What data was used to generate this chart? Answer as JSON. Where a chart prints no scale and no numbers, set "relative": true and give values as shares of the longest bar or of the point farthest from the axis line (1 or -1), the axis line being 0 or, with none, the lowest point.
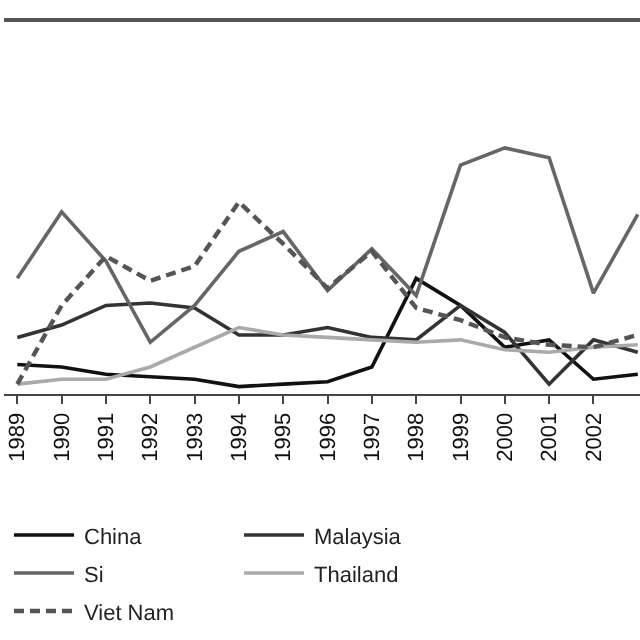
{
  "chart_data": {
    "type": "line",
    "relative": true,
    "x": [
      1989,
      1990,
      1991,
      1992,
      1993,
      1994,
      1995,
      1996,
      1997,
      1998,
      1999,
      2000,
      2001,
      2002,
      2003
    ],
    "xlim": [
      1988.7,
      2003.05
    ],
    "xticks": [
      1989,
      1990,
      1991,
      1992,
      1993,
      1994,
      1995,
      1996,
      1997,
      1998,
      1999,
      2000,
      2001,
      2002
    ],
    "grid": false,
    "legend": "bottom",
    "marker": "none",
    "series": [
      {
        "name": "China",
        "color": "#111111",
        "line_style": "solid",
        "values": [
          0.12,
          0.11,
          0.08,
          0.07,
          0.06,
          0.03,
          0.04,
          0.05,
          0.11,
          0.47,
          0.36,
          0.19,
          0.22,
          0.06,
          0.08
        ]
      },
      {
        "name": "Malaysia",
        "color": "#333333",
        "line_style": "solid",
        "values": [
          0.23,
          0.28,
          0.36,
          0.37,
          0.35,
          0.24,
          0.24,
          0.27,
          0.23,
          0.22,
          0.36,
          0.25,
          0.04,
          0.22,
          0.17
        ]
      },
      {
        "name": "Si",
        "color": "#666666",
        "line_style": "solid",
        "values": [
          0.47,
          0.74,
          0.54,
          0.21,
          0.36,
          0.58,
          0.66,
          0.42,
          0.59,
          0.4,
          0.93,
          1,
          0.96,
          0.41,
          0.73
        ]
      },
      {
        "name": "Thailand",
        "color": "#aaaaaa",
        "line_style": "solid",
        "values": [
          0.04,
          0.06,
          0.06,
          0.11,
          0.19,
          0.27,
          0.24,
          0.23,
          0.22,
          0.21,
          0.22,
          0.18,
          0.17,
          0.19,
          0.2
        ]
      },
      {
        "name": "Viet Nam",
        "color": "#555555",
        "line_style": "dashed",
        "values": [
          0.04,
          0.36,
          0.56,
          0.46,
          0.52,
          0.78,
          0.61,
          0.43,
          0.58,
          0.35,
          0.3,
          0.23,
          0.2,
          0.19,
          0.24
        ]
      }
    ]
  }
}
